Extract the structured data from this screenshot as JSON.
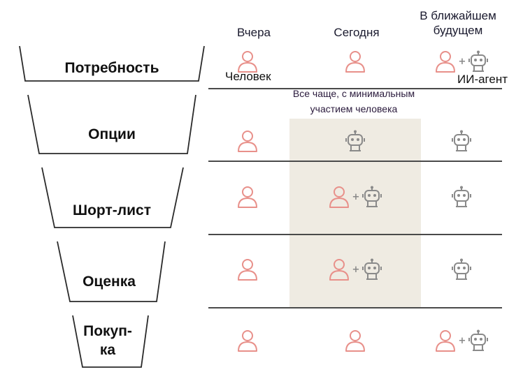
{
  "columns": [
    "Вчера",
    "Сегодня",
    "В ближайшем будущем"
  ],
  "column_lines": [
    [
      "Вчера"
    ],
    [
      "Сегодня"
    ],
    [
      "В ближайшем",
      "будущем"
    ]
  ],
  "stages": [
    "Потребность",
    "Опции",
    "Шорт-лист",
    "Оценка",
    "Покуп-ка"
  ],
  "stage_lines": [
    [
      "Потребность"
    ],
    [
      "Опции"
    ],
    [
      "Шорт-лист"
    ],
    [
      "Оценка"
    ],
    [
      "Покуп-",
      "ка"
    ]
  ],
  "legend": {
    "human": "Человек",
    "agent": "ИИ-агент"
  },
  "highlight_note": "Все чаще, с минимальным участием человека",
  "grid": [
    [
      "human",
      "human",
      "human+agent"
    ],
    [
      "human",
      "agent",
      "agent"
    ],
    [
      "human",
      "human+agent",
      "agent"
    ],
    [
      "human",
      "human+agent",
      "agent"
    ],
    [
      "human",
      "human",
      "human+agent"
    ]
  ],
  "colors": {
    "human": "#e8908a",
    "agent": "#8a8a8a",
    "highlight": "#efebe2",
    "line": "#4a4a4a"
  },
  "icons": {
    "human": "person-icon",
    "agent": "robot-icon",
    "plus": "plus-icon"
  }
}
